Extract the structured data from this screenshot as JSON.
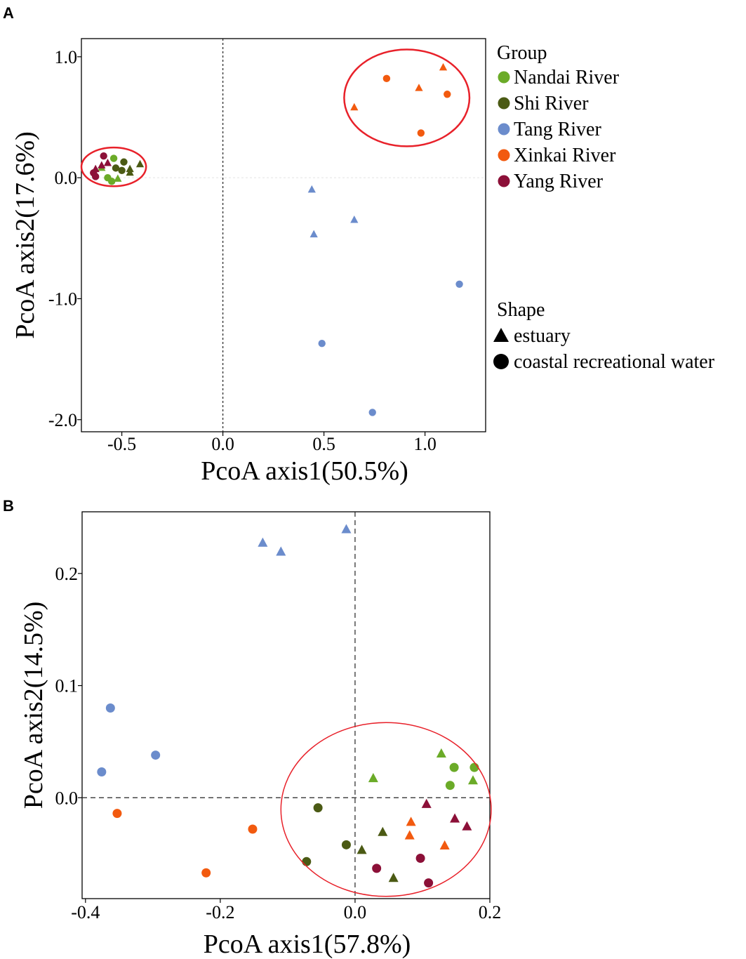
{
  "figure": {
    "panel_labels": [
      "A",
      "B"
    ]
  },
  "colors": {
    "Nandai River": "#6bab28",
    "Shi River": "#4b5a14",
    "Tang River": "#6b8ccc",
    "Xinkai River": "#f25a0f",
    "Yang River": "#8c1038",
    "ellipse": "#e8212a"
  },
  "legend": {
    "group_title": "Group",
    "groups": [
      "Nandai River",
      "Shi River",
      "Tang River",
      "Xinkai River",
      "Yang River"
    ],
    "shape_title": "Shape",
    "shapes": [
      {
        "label": "estuary",
        "shape": "triangle"
      },
      {
        "label": "coastal recreational water",
        "shape": "circle"
      }
    ]
  },
  "chart_data": [
    {
      "panel": "A",
      "type": "scatter",
      "xlabel": "PcoA axis1(50.5%)",
      "ylabel": "PcoA axis2(17.6%)",
      "xlim": [
        -0.7,
        1.3
      ],
      "ylim": [
        -2.1,
        1.15
      ],
      "xticks": [
        -0.5,
        0.0,
        0.5,
        1.0
      ],
      "xtick_labels": [
        "-0.5",
        "0.0",
        "0.5",
        "1.0"
      ],
      "yticks": [
        1.0,
        0.0,
        -1.0,
        -2.0
      ],
      "ytick_labels": [
        "1.0",
        "0.0",
        "-1.0",
        "-2.0"
      ],
      "refline_x": 0,
      "refline_y": 0,
      "ellipses": [
        {
          "cx": -0.54,
          "cy": 0.09,
          "rx": 0.16,
          "ry": 0.16
        },
        {
          "cx": 0.91,
          "cy": 0.66,
          "rx": 0.31,
          "ry": 0.4
        }
      ],
      "points": [
        {
          "group": "Nandai River",
          "shape": "triangle",
          "x": -0.6,
          "y": 0.08
        },
        {
          "group": "Nandai River",
          "shape": "triangle",
          "x": -0.52,
          "y": -0.01
        },
        {
          "group": "Nandai River",
          "shape": "circle",
          "x": -0.55,
          "y": -0.03
        },
        {
          "group": "Nandai River",
          "shape": "circle",
          "x": -0.54,
          "y": 0.16
        },
        {
          "group": "Nandai River",
          "shape": "circle",
          "x": -0.57,
          "y": 0.0
        },
        {
          "group": "Shi River",
          "shape": "triangle",
          "x": -0.46,
          "y": 0.04
        },
        {
          "group": "Shi River",
          "shape": "triangle",
          "x": -0.41,
          "y": 0.11
        },
        {
          "group": "Shi River",
          "shape": "triangle",
          "x": -0.46,
          "y": 0.07
        },
        {
          "group": "Shi River",
          "shape": "circle",
          "x": -0.5,
          "y": 0.06
        },
        {
          "group": "Shi River",
          "shape": "circle",
          "x": -0.49,
          "y": 0.13
        },
        {
          "group": "Shi River",
          "shape": "circle",
          "x": -0.53,
          "y": 0.08
        },
        {
          "group": "Tang River",
          "shape": "triangle",
          "x": 0.44,
          "y": -0.1
        },
        {
          "group": "Tang River",
          "shape": "triangle",
          "x": 0.45,
          "y": -0.47
        },
        {
          "group": "Tang River",
          "shape": "triangle",
          "x": 0.65,
          "y": -0.35
        },
        {
          "group": "Tang River",
          "shape": "circle",
          "x": 0.49,
          "y": -1.37
        },
        {
          "group": "Tang River",
          "shape": "circle",
          "x": 0.74,
          "y": -1.94
        },
        {
          "group": "Tang River",
          "shape": "circle",
          "x": 1.17,
          "y": -0.88
        },
        {
          "group": "Xinkai River",
          "shape": "triangle",
          "x": 0.65,
          "y": 0.58
        },
        {
          "group": "Xinkai River",
          "shape": "triangle",
          "x": 0.97,
          "y": 0.74
        },
        {
          "group": "Xinkai River",
          "shape": "triangle",
          "x": 1.09,
          "y": 0.91
        },
        {
          "group": "Xinkai River",
          "shape": "circle",
          "x": 0.81,
          "y": 0.82
        },
        {
          "group": "Xinkai River",
          "shape": "circle",
          "x": 0.98,
          "y": 0.37
        },
        {
          "group": "Xinkai River",
          "shape": "circle",
          "x": 1.11,
          "y": 0.69
        },
        {
          "group": "Yang River",
          "shape": "triangle",
          "x": -0.63,
          "y": 0.07
        },
        {
          "group": "Yang River",
          "shape": "triangle",
          "x": -0.6,
          "y": 0.1
        },
        {
          "group": "Yang River",
          "shape": "triangle",
          "x": -0.57,
          "y": 0.12
        },
        {
          "group": "Yang River",
          "shape": "circle",
          "x": -0.64,
          "y": 0.04
        },
        {
          "group": "Yang River",
          "shape": "circle",
          "x": -0.63,
          "y": 0.01
        },
        {
          "group": "Yang River",
          "shape": "circle",
          "x": -0.59,
          "y": 0.18
        }
      ]
    },
    {
      "panel": "B",
      "type": "scatter",
      "xlabel": "PcoA axis1(57.8%)",
      "ylabel": "PcoA axis2(14.5%)",
      "xlim": [
        -0.405,
        0.2
      ],
      "ylim": [
        -0.09,
        0.255
      ],
      "xticks": [
        -0.4,
        -0.2,
        0.0,
        0.2
      ],
      "xtick_labels": [
        "-0.4",
        "-0.2",
        "0.0",
        "0.2"
      ],
      "yticks": [
        0.2,
        0.1,
        0.0
      ],
      "ytick_labels": [
        "0.2",
        "0.1",
        "0.0"
      ],
      "refline_x": 0,
      "refline_y": 0,
      "ellipses": [
        {
          "cx": 0.046,
          "cy": -0.0105,
          "rx": 0.156,
          "ry": 0.0775
        }
      ],
      "points": [
        {
          "group": "Nandai River",
          "shape": "triangle",
          "x": 0.027,
          "y": 0.017
        },
        {
          "group": "Nandai River",
          "shape": "triangle",
          "x": 0.128,
          "y": 0.039
        },
        {
          "group": "Nandai River",
          "shape": "triangle",
          "x": 0.175,
          "y": 0.015
        },
        {
          "group": "Nandai River",
          "shape": "circle",
          "x": 0.147,
          "y": 0.027
        },
        {
          "group": "Nandai River",
          "shape": "circle",
          "x": 0.177,
          "y": 0.027
        },
        {
          "group": "Nandai River",
          "shape": "circle",
          "x": 0.141,
          "y": 0.011
        },
        {
          "group": "Shi River",
          "shape": "triangle",
          "x": 0.041,
          "y": -0.031
        },
        {
          "group": "Shi River",
          "shape": "triangle",
          "x": 0.01,
          "y": -0.047
        },
        {
          "group": "Shi River",
          "shape": "triangle",
          "x": 0.057,
          "y": -0.072
        },
        {
          "group": "Shi River",
          "shape": "circle",
          "x": -0.055,
          "y": -0.009
        },
        {
          "group": "Shi River",
          "shape": "circle",
          "x": -0.013,
          "y": -0.042
        },
        {
          "group": "Shi River",
          "shape": "circle",
          "x": -0.072,
          "y": -0.057
        },
        {
          "group": "Tang River",
          "shape": "triangle",
          "x": -0.137,
          "y": 0.227
        },
        {
          "group": "Tang River",
          "shape": "triangle",
          "x": -0.11,
          "y": 0.219
        },
        {
          "group": "Tang River",
          "shape": "triangle",
          "x": -0.013,
          "y": 0.239
        },
        {
          "group": "Tang River",
          "shape": "circle",
          "x": -0.363,
          "y": 0.08
        },
        {
          "group": "Tang River",
          "shape": "circle",
          "x": -0.296,
          "y": 0.038
        },
        {
          "group": "Tang River",
          "shape": "circle",
          "x": -0.376,
          "y": 0.023
        },
        {
          "group": "Xinkai River",
          "shape": "triangle",
          "x": 0.083,
          "y": -0.022
        },
        {
          "group": "Xinkai River",
          "shape": "triangle",
          "x": 0.081,
          "y": -0.034
        },
        {
          "group": "Xinkai River",
          "shape": "triangle",
          "x": 0.133,
          "y": -0.043
        },
        {
          "group": "Xinkai River",
          "shape": "circle",
          "x": -0.353,
          "y": -0.014
        },
        {
          "group": "Xinkai River",
          "shape": "circle",
          "x": -0.152,
          "y": -0.028
        },
        {
          "group": "Xinkai River",
          "shape": "circle",
          "x": -0.221,
          "y": -0.067
        },
        {
          "group": "Yang River",
          "shape": "triangle",
          "x": 0.106,
          "y": -0.006
        },
        {
          "group": "Yang River",
          "shape": "triangle",
          "x": 0.148,
          "y": -0.019
        },
        {
          "group": "Yang River",
          "shape": "triangle",
          "x": 0.166,
          "y": -0.026
        },
        {
          "group": "Yang River",
          "shape": "circle",
          "x": 0.032,
          "y": -0.063
        },
        {
          "group": "Yang River",
          "shape": "circle",
          "x": 0.097,
          "y": -0.054
        },
        {
          "group": "Yang River",
          "shape": "circle",
          "x": 0.109,
          "y": -0.076
        }
      ]
    }
  ]
}
